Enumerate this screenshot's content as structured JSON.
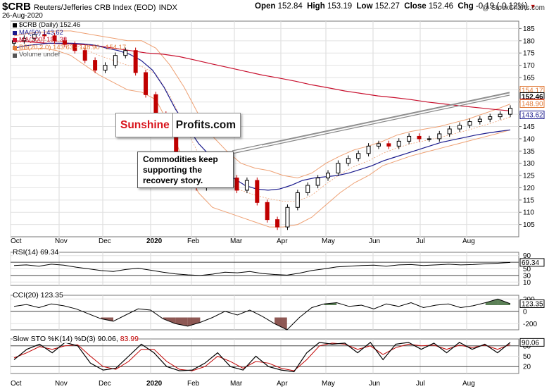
{
  "header": {
    "symbol": "$CRB",
    "name": "Reuters/Jefferies CRB Index (EOD)",
    "exchange": "INDX",
    "date": "26-Aug-2020",
    "open_label": "Open",
    "open": "152.84",
    "high_label": "High",
    "high": "153.19",
    "low_label": "Low",
    "low": "152.27",
    "close_label": "Close",
    "close": "152.46",
    "chg_label": "Chg",
    "chg": "-0.19 (-0.12%)",
    "chg_icon": "down-triangle-icon"
  },
  "watermark": "@ StockCharts.com",
  "legend": [
    {
      "text": "$CRB (Daily) 152.46",
      "color": "#000000"
    },
    {
      "text": "MA(50) 143.62",
      "color": "#1a1a8c"
    },
    {
      "text": "MA(200) 151.38",
      "color": "#c8102e"
    },
    {
      "text": "BB(20,2.0) 143.63 - 148.90 - 154.17",
      "color": "#e07b39"
    },
    {
      "text": "Volume undef",
      "color": "#555555"
    }
  ],
  "annotations": {
    "logo_left": "Sunshine",
    "logo_right": "Profits.com",
    "note": "Commodities keep supporting the recovery story."
  },
  "colors": {
    "ma50": "#1a1a8c",
    "ma200": "#c8102e",
    "bb": "#eea073",
    "up": "#000000",
    "down": "#c00000",
    "channel": "#888888",
    "ind_fill_pos": "#3f6b3a",
    "ind_fill_neg": "#7a3b36"
  },
  "chart_data": [
    {
      "type": "candlestick",
      "title": "$CRB Reuters/Jefferies CRB Index (EOD)",
      "x_tick_labels": [
        "Oct",
        "Nov",
        "Dec",
        "2020",
        "Feb",
        "Mar",
        "Apr",
        "May",
        "Jun",
        "Jul",
        "Aug"
      ],
      "ylim": [
        100,
        188
      ],
      "y_ticks": [
        105,
        110,
        115,
        120,
        125,
        130,
        135,
        140,
        145,
        150,
        155,
        160,
        165,
        170,
        175,
        180,
        185
      ],
      "series": [
        {
          "name": "$CRB (Daily)",
          "values": [
            180,
            181,
            182.5,
            182,
            180,
            178.5,
            176,
            172,
            168,
            170,
            174,
            176,
            167,
            158,
            150,
            143,
            133,
            125,
            120,
            124,
            130,
            124,
            119,
            123,
            114,
            107,
            104,
            112,
            118,
            121,
            124,
            126,
            130,
            132,
            134,
            137,
            138,
            137,
            139,
            141,
            140,
            140,
            142,
            144,
            145.5,
            147,
            148,
            149,
            150,
            152.46
          ]
        },
        {
          "name": "MA(50)",
          "values": [
            177,
            178,
            178.5,
            179,
            179,
            179,
            178.7,
            178.2,
            177,
            176,
            174.5,
            172,
            168,
            161,
            152,
            145,
            138,
            133,
            128,
            124,
            121,
            119.5,
            119,
            119.5,
            121,
            123,
            124,
            124.5,
            125,
            126,
            127.5,
            129,
            131,
            132.5,
            134,
            135.5,
            137,
            138.5,
            139.5,
            140.5,
            141.5,
            142.3,
            143,
            143.62
          ]
        },
        {
          "name": "MA(200)",
          "values": [
            180,
            179.5,
            179,
            178.8,
            178.5,
            178,
            177,
            176,
            175,
            174.5,
            173.5,
            172,
            170.5,
            169,
            167.5,
            166,
            164.8,
            163.5,
            162,
            160.8,
            159.5,
            158.5,
            157.5,
            156.8,
            156,
            155,
            154.2,
            153.4,
            152.7,
            152,
            151.38
          ]
        },
        {
          "name": "BB upper",
          "values": [
            182,
            183,
            183.5,
            184,
            184,
            183,
            182,
            181,
            180,
            180,
            177,
            170,
            161,
            150,
            141,
            135,
            130,
            128,
            127,
            125,
            124,
            126,
            130,
            133,
            135.5,
            137,
            139,
            141.5,
            143,
            144,
            145,
            146.5,
            148,
            150,
            152,
            154.17
          ]
        },
        {
          "name": "BB lower",
          "values": [
            176,
            176.5,
            177,
            176,
            174,
            170,
            166,
            163,
            160,
            159,
            156,
            145,
            130,
            118,
            112,
            110,
            108,
            106,
            104,
            104,
            105,
            108,
            113,
            118,
            122,
            125,
            129,
            131,
            133,
            134.5,
            136,
            137.5,
            139,
            140.5,
            142,
            143.63
          ]
        }
      ],
      "last_values": [
        "154.17",
        "152.46",
        "151.38",
        "148.90",
        "143.62"
      ]
    },
    {
      "type": "line",
      "title": "RSI(14) 69.34",
      "series": [
        {
          "name": "RSI(14)",
          "values": [
            60,
            62,
            58,
            64,
            61,
            55,
            50,
            45,
            42,
            48,
            52,
            46,
            40,
            35,
            32,
            30,
            34,
            40,
            38,
            42,
            36,
            33,
            31,
            37,
            45,
            50,
            56,
            58,
            60,
            61,
            58,
            62,
            63,
            60,
            62,
            64,
            62,
            63,
            65,
            67,
            69.34
          ]
        }
      ],
      "ylim": [
        0,
        100
      ],
      "y_ticks": [
        10,
        30,
        50,
        70,
        90
      ],
      "last_value": "69.34"
    },
    {
      "type": "line",
      "title": "CCI(20) 123.35",
      "series": [
        {
          "name": "CCI(20)",
          "values": [
            80,
            110,
            60,
            120,
            90,
            40,
            -40,
            -120,
            -160,
            -60,
            40,
            20,
            -120,
            -200,
            -240,
            -180,
            -100,
            0,
            -60,
            20,
            -80,
            -200,
            -300,
            -100,
            60,
            120,
            140,
            80,
            100,
            40,
            120,
            80,
            140,
            60,
            100,
            120,
            60,
            90,
            140,
            200,
            123.35
          ]
        }
      ],
      "ylim": [
        -300,
        260
      ],
      "y_ticks": [
        -200,
        0,
        200
      ],
      "last_value": "123.35"
    },
    {
      "type": "line",
      "title": "Slow STO %K(14) %D(3) 90.06, 83.99",
      "series": [
        {
          "name": "%K(14)",
          "values": [
            40,
            70,
            85,
            60,
            90,
            80,
            30,
            10,
            15,
            50,
            85,
            60,
            20,
            8,
            10,
            30,
            60,
            20,
            10,
            50,
            20,
            10,
            5,
            60,
            90,
            85,
            88,
            60,
            90,
            40,
            85,
            90,
            70,
            88,
            60,
            90,
            70,
            85,
            60,
            90.06
          ]
        },
        {
          "name": "%D(3)",
          "values": [
            45,
            60,
            78,
            70,
            80,
            83,
            50,
            20,
            12,
            35,
            70,
            70,
            35,
            12,
            8,
            20,
            50,
            35,
            15,
            35,
            30,
            15,
            8,
            40,
            80,
            88,
            85,
            70,
            80,
            55,
            75,
            85,
            80,
            82,
            70,
            82,
            75,
            82,
            70,
            83.99
          ]
        }
      ],
      "ylim": [
        0,
        100
      ],
      "y_ticks": [
        20,
        50,
        80
      ],
      "last_value": "90.06"
    }
  ]
}
